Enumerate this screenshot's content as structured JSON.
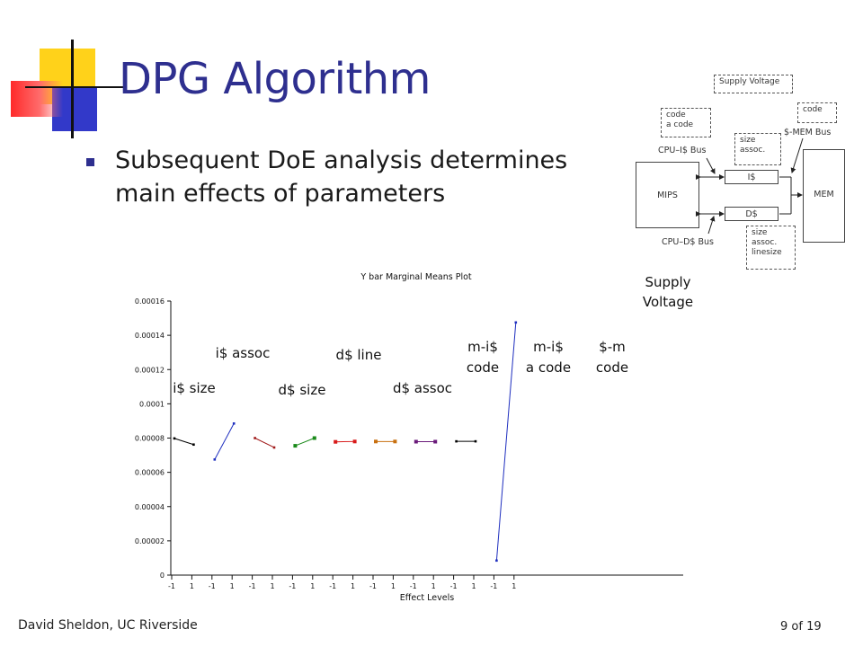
{
  "slide": {
    "title": "DPG Algorithm",
    "bullet": "Subsequent DoE analysis determines main effects of parameters",
    "footer_author": "David Sheldon, UC Riverside",
    "page_number": "9 of 19"
  },
  "diagram": {
    "supply_voltage": "Supply Voltage",
    "code_left_1": "code",
    "code_left_2": "a code",
    "code_right": "code",
    "cpu_i_bus": "CPU–I$ Bus",
    "mem_bus": "$-MEM Bus",
    "size_assoc_1": "size",
    "size_assoc_2": "assoc.",
    "mips": "MIPS",
    "icache": "I$",
    "dcache": "D$",
    "mem": "MEM",
    "cpu_d_bus": "CPU–D$ Bus",
    "d_size": "size",
    "d_assoc": "assoc.",
    "d_linesize": "linesize"
  },
  "chart_data": {
    "type": "line",
    "title": "Y bar Marginal Means Plot",
    "xlabel": "Effect Levels",
    "ylabel": "",
    "ylim": [
      0,
      0.00016
    ],
    "y_ticks": [
      "0",
      "0.00002",
      "0.00004",
      "0.00006",
      "0.00008",
      "0.0001",
      "0.00012",
      "0.00014",
      "0.00016"
    ],
    "x_tick_labels": [
      "-1",
      "1",
      "-1",
      "1",
      "-1",
      "1",
      "-1",
      "1",
      "-1",
      "1",
      "-1",
      "1",
      "-1",
      "1",
      "-1",
      "1",
      "-1",
      "1"
    ],
    "grid": false,
    "series": [
      {
        "label_top": "i$ size",
        "label_bottom": "",
        "color": "#000000",
        "values": [
          7.98e-05,
          7.62e-05
        ]
      },
      {
        "label_top": "i$ assoc",
        "label_bottom": "",
        "color": "#1f2fbf",
        "values": [
          6.75e-05,
          8.85e-05
        ]
      },
      {
        "label_top": "d$ size",
        "label_bottom": "",
        "color": "#a01818",
        "values": [
          8e-05,
          7.45e-05
        ]
      },
      {
        "label_top": "d$ line",
        "label_bottom": "",
        "color": "#1a8a1a",
        "values": [
          7.55e-05,
          8e-05
        ]
      },
      {
        "label_top": "d$ assoc",
        "label_bottom": "",
        "color": "#d81a1a",
        "values": [
          7.78e-05,
          7.8e-05
        ]
      },
      {
        "label_top": "m-i$",
        "label_bottom": "code",
        "color": "#c87010",
        "values": [
          7.8e-05,
          7.8e-05
        ]
      },
      {
        "label_top": "m-i$",
        "label_bottom": "a code",
        "color": "#6a1a7a",
        "values": [
          7.79e-05,
          7.79e-05
        ]
      },
      {
        "label_top": "$-m",
        "label_bottom": "code",
        "color": "#000000",
        "values": [
          7.81e-05,
          7.81e-05
        ]
      },
      {
        "label_top": "Supply",
        "label_bottom": "Voltage",
        "color": "#1f2fbf",
        "values": [
          8.5e-06,
          0.0001475
        ]
      }
    ]
  }
}
